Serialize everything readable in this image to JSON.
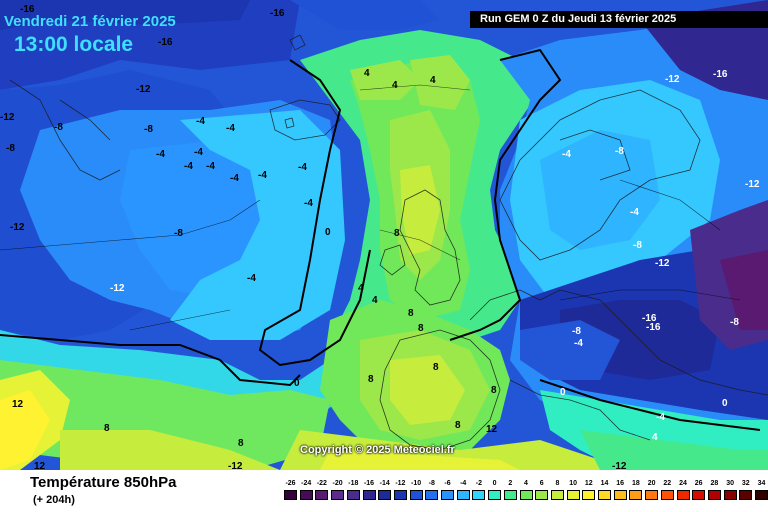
{
  "header": {
    "date": "Vendredi 21 février 2025",
    "time": "13:00 locale",
    "run": "Run GEM 0 Z du Jeudi 13 février 2025"
  },
  "copyright": "Copyright © 2025 Meteociel.fr",
  "legend": {
    "title": "Température 850hPa",
    "subtitle": "(+ 204h)",
    "ticks": [
      "-26",
      "-24",
      "-22",
      "-20",
      "-18",
      "-16",
      "-14",
      "-12",
      "-10",
      "-8",
      "-6",
      "-4",
      "-2",
      "0",
      "2",
      "4",
      "6",
      "8",
      "10",
      "12",
      "14",
      "16",
      "18",
      "20",
      "22",
      "24",
      "26",
      "28",
      "30",
      "32",
      "34"
    ],
    "colors": [
      "#36003c",
      "#4a0a5a",
      "#5a1a72",
      "#5e2a8e",
      "#4a2c8c",
      "#302890",
      "#1f2a99",
      "#1c35b0",
      "#1f52d4",
      "#2370ee",
      "#2a92ff",
      "#2fb4ff",
      "#34d2ff",
      "#31eec2",
      "#46e88c",
      "#70e85a",
      "#9ce84a",
      "#c6ec3e",
      "#e6f236",
      "#fff230",
      "#ffd828",
      "#ffbc20",
      "#ff9c18",
      "#ff7810",
      "#ff5208",
      "#f02800",
      "#d40e00",
      "#b00000",
      "#880000",
      "#5a0000",
      "#2e0000"
    ]
  },
  "contour_labels": [
    {
      "id": "c01",
      "text": "-16"
    },
    {
      "id": "c02",
      "text": "-16"
    },
    {
      "id": "c03",
      "text": "-16"
    },
    {
      "id": "c04",
      "text": "-12"
    },
    {
      "id": "c05",
      "text": "-12"
    },
    {
      "id": "c06",
      "text": "-12"
    },
    {
      "id": "c07",
      "text": "-8"
    },
    {
      "id": "c08",
      "text": "-8"
    },
    {
      "id": "c09",
      "text": "-8"
    },
    {
      "id": "c10",
      "text": "-8"
    },
    {
      "id": "c11",
      "text": "-4"
    },
    {
      "id": "c12",
      "text": "-4"
    },
    {
      "id": "c13",
      "text": "-4"
    },
    {
      "id": "c14",
      "text": "-4"
    },
    {
      "id": "c15",
      "text": "-4"
    },
    {
      "id": "c16",
      "text": "-4"
    },
    {
      "id": "c17",
      "text": "-4"
    },
    {
      "id": "c18",
      "text": "-4"
    },
    {
      "id": "c19",
      "text": "-4"
    },
    {
      "id": "c20",
      "text": "-4"
    },
    {
      "id": "c21",
      "text": "-4"
    },
    {
      "id": "c22",
      "text": "0"
    },
    {
      "id": "c23",
      "text": "0"
    },
    {
      "id": "c24",
      "text": "4"
    },
    {
      "id": "c25",
      "text": "4"
    },
    {
      "id": "c26",
      "text": "4"
    },
    {
      "id": "c27",
      "text": "4"
    },
    {
      "id": "c28",
      "text": "4"
    },
    {
      "id": "c29",
      "text": "8"
    },
    {
      "id": "c30",
      "text": "8"
    },
    {
      "id": "c31",
      "text": "8"
    },
    {
      "id": "c32",
      "text": "8"
    },
    {
      "id": "c33",
      "text": "8"
    },
    {
      "id": "c34",
      "text": "8"
    },
    {
      "id": "c35",
      "text": "12"
    },
    {
      "id": "c36",
      "text": "12"
    },
    {
      "id": "c37",
      "text": "12"
    },
    {
      "id": "c38",
      "text": "-12"
    },
    {
      "id": "c39",
      "text": "-12"
    },
    {
      "id": "c40",
      "text": "-12"
    },
    {
      "id": "c41",
      "text": "-12"
    },
    {
      "id": "c42",
      "text": "-16"
    },
    {
      "id": "c43",
      "text": "-16"
    },
    {
      "id": "c44",
      "text": "-8"
    },
    {
      "id": "c45",
      "text": "-8"
    },
    {
      "id": "c46",
      "text": "-8"
    },
    {
      "id": "c47",
      "text": "-8"
    },
    {
      "id": "c48",
      "text": "-4"
    },
    {
      "id": "c49",
      "text": "-4"
    },
    {
      "id": "c50",
      "text": "-4"
    },
    {
      "id": "c51",
      "text": "-4"
    },
    {
      "id": "c52",
      "text": "0"
    },
    {
      "id": "c53",
      "text": "0"
    },
    {
      "id": "c54",
      "text": "4"
    },
    {
      "id": "c55",
      "text": "8"
    },
    {
      "id": "c56",
      "text": "8"
    },
    {
      "id": "c57",
      "text": "8"
    },
    {
      "id": "c58",
      "text": "-12"
    },
    {
      "id": "c59",
      "text": "-12"
    },
    {
      "id": "c60",
      "text": "-16"
    }
  ]
}
